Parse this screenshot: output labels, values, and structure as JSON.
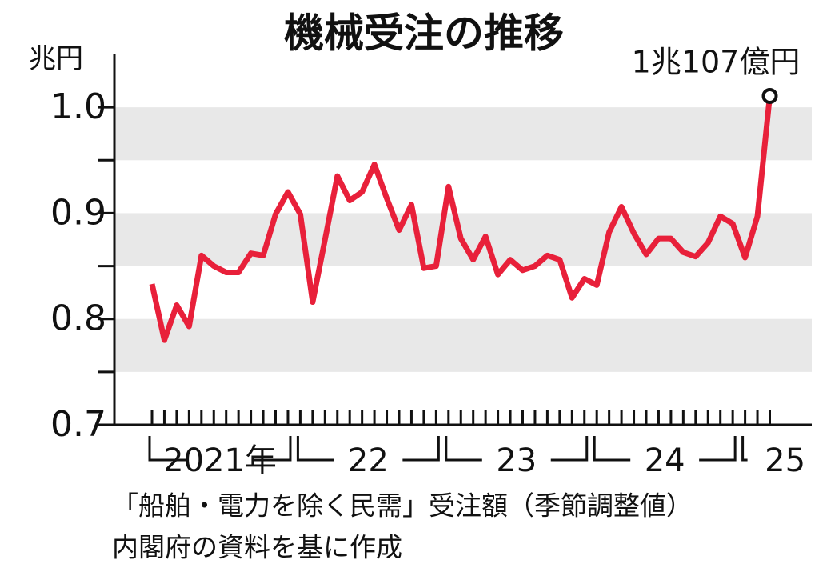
{
  "chart_data": {
    "type": "line",
    "title": "機械受注の推移",
    "y_label": "兆円",
    "annotation": "1兆107億円",
    "note": [
      "「船舶・電力を除く民需」受注額（季節調整値）",
      "内閣府の資料を基に作成"
    ],
    "categories": [
      "2021年",
      null,
      null,
      null,
      null,
      null,
      null,
      null,
      null,
      null,
      null,
      null,
      "22",
      null,
      null,
      null,
      null,
      null,
      null,
      null,
      null,
      null,
      null,
      null,
      "23",
      null,
      null,
      null,
      null,
      null,
      null,
      null,
      null,
      null,
      null,
      null,
      "24",
      null,
      null,
      null,
      null,
      null,
      null,
      null,
      null,
      null,
      null,
      null,
      "25",
      null,
      null
    ],
    "series": [
      {
        "color": "#e8203a",
        "values": [
          0.833,
          0.78,
          0.813,
          0.793,
          0.86,
          0.85,
          0.844,
          0.844,
          0.862,
          0.86,
          0.899,
          0.92,
          0.899,
          0.816,
          0.875,
          0.935,
          0.912,
          0.92,
          0.946,
          0.914,
          0.884,
          0.908,
          0.848,
          0.85,
          0.925,
          0.876,
          0.856,
          0.878,
          0.842,
          0.856,
          0.846,
          0.85,
          0.86,
          0.856,
          0.82,
          0.838,
          0.832,
          0.882,
          0.906,
          0.881,
          0.861,
          0.876,
          0.876,
          0.863,
          0.859,
          0.872,
          0.897,
          0.89,
          0.858,
          0.897,
          1.0107
        ]
      }
    ],
    "ylim": [
      0.7,
      1.05
    ],
    "yticks": [
      0.7,
      0.8,
      0.9,
      {
        "value": 1,
        "label": "1.0"
      }
    ],
    "grid": true
  }
}
